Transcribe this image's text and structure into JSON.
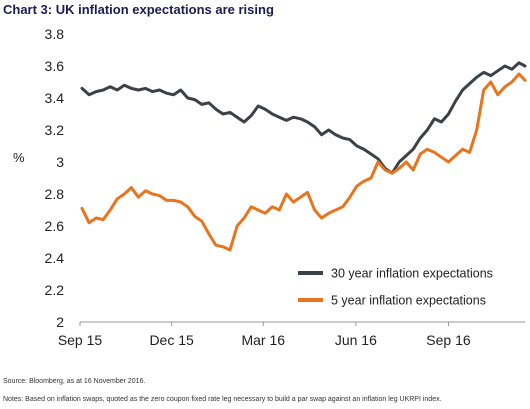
{
  "chart_data": {
    "type": "line",
    "title": "Chart 3: UK inflation expectations are rising",
    "ylabel": "%",
    "xlabel": "",
    "ylim": [
      2,
      3.8
    ],
    "yticks": [
      "2",
      "2.2",
      "2.4",
      "2.6",
      "2.8",
      "3",
      "3.2",
      "3.4",
      "3.6",
      "3.8"
    ],
    "xlim": [
      "2015-09-01",
      "2016-11-16"
    ],
    "xticks": [
      {
        "date": "2015-09-01",
        "label": "Sep 15"
      },
      {
        "date": "2015-12-01",
        "label": "Dec 15"
      },
      {
        "date": "2016-03-01",
        "label": "Mar 16"
      },
      {
        "date": "2016-06-01",
        "label": "Jun 16"
      },
      {
        "date": "2016-09-01",
        "label": "Sep 16"
      }
    ],
    "grid": false,
    "legend_position": "bottom-right",
    "series": [
      {
        "name": "30 year inflation expectations",
        "color": "#3b4148",
        "points": [
          [
            "2015-09-03",
            3.46
          ],
          [
            "2015-09-10",
            3.42
          ],
          [
            "2015-09-17",
            3.44
          ],
          [
            "2015-09-24",
            3.45
          ],
          [
            "2015-10-01",
            3.47
          ],
          [
            "2015-10-08",
            3.45
          ],
          [
            "2015-10-15",
            3.48
          ],
          [
            "2015-10-22",
            3.46
          ],
          [
            "2015-10-29",
            3.45
          ],
          [
            "2015-11-05",
            3.46
          ],
          [
            "2015-11-12",
            3.44
          ],
          [
            "2015-11-19",
            3.45
          ],
          [
            "2015-11-26",
            3.43
          ],
          [
            "2015-12-03",
            3.42
          ],
          [
            "2015-12-10",
            3.45
          ],
          [
            "2015-12-17",
            3.4
          ],
          [
            "2015-12-24",
            3.39
          ],
          [
            "2015-12-31",
            3.36
          ],
          [
            "2016-01-07",
            3.37
          ],
          [
            "2016-01-14",
            3.33
          ],
          [
            "2016-01-21",
            3.3
          ],
          [
            "2016-01-28",
            3.31
          ],
          [
            "2016-02-04",
            3.28
          ],
          [
            "2016-02-11",
            3.25
          ],
          [
            "2016-02-18",
            3.29
          ],
          [
            "2016-02-25",
            3.35
          ],
          [
            "2016-03-03",
            3.33
          ],
          [
            "2016-03-10",
            3.3
          ],
          [
            "2016-03-17",
            3.28
          ],
          [
            "2016-03-24",
            3.26
          ],
          [
            "2016-03-31",
            3.28
          ],
          [
            "2016-04-07",
            3.27
          ],
          [
            "2016-04-14",
            3.25
          ],
          [
            "2016-04-21",
            3.22
          ],
          [
            "2016-04-28",
            3.17
          ],
          [
            "2016-05-05",
            3.2
          ],
          [
            "2016-05-12",
            3.17
          ],
          [
            "2016-05-19",
            3.15
          ],
          [
            "2016-05-26",
            3.14
          ],
          [
            "2016-06-02",
            3.1
          ],
          [
            "2016-06-09",
            3.08
          ],
          [
            "2016-06-16",
            3.05
          ],
          [
            "2016-06-23",
            3.02
          ],
          [
            "2016-06-30",
            2.96
          ],
          [
            "2016-07-07",
            2.93
          ],
          [
            "2016-07-14",
            3.0
          ],
          [
            "2016-07-21",
            3.04
          ],
          [
            "2016-07-28",
            3.08
          ],
          [
            "2016-08-04",
            3.15
          ],
          [
            "2016-08-11",
            3.2
          ],
          [
            "2016-08-18",
            3.27
          ],
          [
            "2016-08-25",
            3.25
          ],
          [
            "2016-09-01",
            3.3
          ],
          [
            "2016-09-08",
            3.38
          ],
          [
            "2016-09-15",
            3.45
          ],
          [
            "2016-09-22",
            3.49
          ],
          [
            "2016-09-29",
            3.53
          ],
          [
            "2016-10-06",
            3.56
          ],
          [
            "2016-10-13",
            3.54
          ],
          [
            "2016-10-20",
            3.57
          ],
          [
            "2016-10-27",
            3.6
          ],
          [
            "2016-11-03",
            3.58
          ],
          [
            "2016-11-10",
            3.62
          ],
          [
            "2016-11-16",
            3.6
          ]
        ]
      },
      {
        "name": "5 year inflation expectations",
        "color": "#e8741e",
        "points": [
          [
            "2015-09-03",
            2.71
          ],
          [
            "2015-09-10",
            2.62
          ],
          [
            "2015-09-17",
            2.65
          ],
          [
            "2015-09-24",
            2.64
          ],
          [
            "2015-10-01",
            2.7
          ],
          [
            "2015-10-08",
            2.77
          ],
          [
            "2015-10-15",
            2.8
          ],
          [
            "2015-10-22",
            2.84
          ],
          [
            "2015-10-29",
            2.78
          ],
          [
            "2015-11-05",
            2.82
          ],
          [
            "2015-11-12",
            2.8
          ],
          [
            "2015-11-19",
            2.79
          ],
          [
            "2015-11-26",
            2.76
          ],
          [
            "2015-12-03",
            2.76
          ],
          [
            "2015-12-10",
            2.75
          ],
          [
            "2015-12-17",
            2.72
          ],
          [
            "2015-12-24",
            2.66
          ],
          [
            "2015-12-31",
            2.63
          ],
          [
            "2016-01-07",
            2.55
          ],
          [
            "2016-01-14",
            2.48
          ],
          [
            "2016-01-21",
            2.47
          ],
          [
            "2016-01-28",
            2.45
          ],
          [
            "2016-02-04",
            2.6
          ],
          [
            "2016-02-11",
            2.65
          ],
          [
            "2016-02-18",
            2.72
          ],
          [
            "2016-02-25",
            2.7
          ],
          [
            "2016-03-03",
            2.68
          ],
          [
            "2016-03-10",
            2.72
          ],
          [
            "2016-03-17",
            2.7
          ],
          [
            "2016-03-24",
            2.8
          ],
          [
            "2016-03-31",
            2.75
          ],
          [
            "2016-04-07",
            2.78
          ],
          [
            "2016-04-14",
            2.81
          ],
          [
            "2016-04-21",
            2.7
          ],
          [
            "2016-04-28",
            2.65
          ],
          [
            "2016-05-05",
            2.68
          ],
          [
            "2016-05-12",
            2.7
          ],
          [
            "2016-05-19",
            2.72
          ],
          [
            "2016-05-26",
            2.78
          ],
          [
            "2016-06-02",
            2.85
          ],
          [
            "2016-06-09",
            2.88
          ],
          [
            "2016-06-16",
            2.9
          ],
          [
            "2016-06-23",
            3.0
          ],
          [
            "2016-06-30",
            2.95
          ],
          [
            "2016-07-07",
            2.93
          ],
          [
            "2016-07-14",
            2.96
          ],
          [
            "2016-07-21",
            3.0
          ],
          [
            "2016-07-28",
            2.95
          ],
          [
            "2016-08-04",
            3.05
          ],
          [
            "2016-08-11",
            3.08
          ],
          [
            "2016-08-18",
            3.06
          ],
          [
            "2016-08-25",
            3.03
          ],
          [
            "2016-09-01",
            3.0
          ],
          [
            "2016-09-08",
            3.04
          ],
          [
            "2016-09-15",
            3.08
          ],
          [
            "2016-09-22",
            3.06
          ],
          [
            "2016-09-29",
            3.2
          ],
          [
            "2016-10-06",
            3.45
          ],
          [
            "2016-10-13",
            3.5
          ],
          [
            "2016-10-20",
            3.42
          ],
          [
            "2016-10-27",
            3.47
          ],
          [
            "2016-11-03",
            3.5
          ],
          [
            "2016-11-10",
            3.55
          ],
          [
            "2016-11-16",
            3.51
          ]
        ]
      }
    ]
  },
  "source": "Source: Bloomberg, as at 16 November 2016.",
  "notes": "Notes: Based on inflation swaps, quoted as the zero coupon fixed rate leg necessary to build a par swap against an inflation leg UKRPI index."
}
